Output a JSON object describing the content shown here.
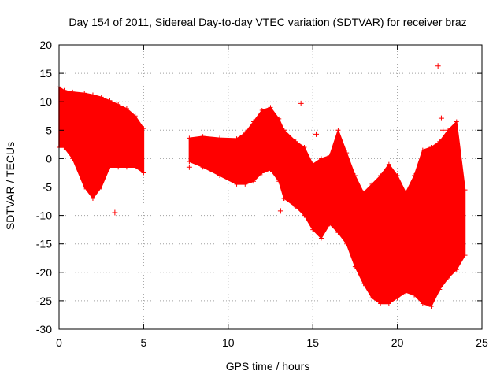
{
  "chart_data": {
    "type": "scatter",
    "title": "Day 154 of 2011, Sidereal Day-to-day VTEC variation (SDTVAR) for receiver braz",
    "xlabel": "GPS time / hours",
    "ylabel": "SDTVAR / TECUs",
    "xlim": [
      0,
      25
    ],
    "ylim": [
      -30,
      20
    ],
    "x_ticks": [
      0,
      5,
      10,
      15,
      20,
      25
    ],
    "y_ticks": [
      -30,
      -25,
      -20,
      -15,
      -10,
      -5,
      0,
      5,
      10,
      15,
      20
    ],
    "grid": true,
    "marker": "+",
    "color": "#ff0000",
    "envelopes": [
      {
        "name": "segment-1",
        "x": [
          0.0,
          0.3,
          0.8,
          1.5,
          2.0,
          2.5,
          3.0,
          3.5,
          4.0,
          4.5,
          5.0
        ],
        "upper": [
          12.6,
          12.0,
          11.7,
          11.5,
          11.2,
          10.8,
          10.2,
          9.5,
          8.8,
          7.5,
          5.3
        ],
        "lower": [
          2.0,
          2.0,
          0.0,
          -5.0,
          -7.0,
          -5.0,
          -1.5,
          -1.5,
          -1.5,
          -1.5,
          -2.5
        ]
      },
      {
        "name": "segment-2",
        "x": [
          7.7,
          8.5,
          9.5,
          10.5,
          11.0,
          11.5,
          12.0,
          12.5,
          13.0,
          13.3
        ],
        "upper": [
          3.6,
          3.9,
          3.6,
          3.5,
          4.5,
          6.5,
          8.5,
          9.0,
          7.0,
          5.0
        ],
        "lower": [
          -0.5,
          -1.5,
          -3.0,
          -4.5,
          -4.5,
          -4.0,
          -2.5,
          -2.0,
          -4.0,
          -7.0
        ]
      },
      {
        "name": "segment-3",
        "x": [
          13.3,
          14.0,
          14.5,
          15.0,
          15.5,
          16.0,
          16.5,
          17.0,
          17.5,
          18.0,
          18.5,
          19.0,
          19.5,
          20.0,
          20.5,
          21.0,
          21.5,
          22.0,
          22.5,
          23.0,
          23.5,
          24.0
        ],
        "upper": [
          5.0,
          3.0,
          2.0,
          -1.0,
          0.0,
          0.5,
          5.0,
          1.0,
          -3.0,
          -6.0,
          -4.5,
          -3.0,
          -1.0,
          -3.0,
          -6.0,
          -3.0,
          1.5,
          2.0,
          3.0,
          5.0,
          6.5,
          -5.5
        ],
        "lower": [
          -7.0,
          -8.5,
          -10.0,
          -12.5,
          -14.0,
          -11.5,
          -13.0,
          -15.0,
          -19.0,
          -22.0,
          -24.5,
          -25.5,
          -25.5,
          -24.5,
          -23.5,
          -24.0,
          -25.5,
          -26.0,
          -23.0,
          -21.0,
          -19.5,
          -17.0
        ]
      }
    ],
    "outliers": [
      {
        "x": 22.4,
        "y": 16.3
      },
      {
        "x": 14.3,
        "y": 9.7
      },
      {
        "x": 15.2,
        "y": 4.3
      },
      {
        "x": 22.6,
        "y": 7.1
      },
      {
        "x": 3.3,
        "y": -9.5
      },
      {
        "x": 13.1,
        "y": -9.2
      },
      {
        "x": 23.9,
        "y": -4.3
      },
      {
        "x": 7.7,
        "y": -1.5
      },
      {
        "x": 22.7,
        "y": 5.0
      },
      {
        "x": 14.2,
        "y": -2.0
      }
    ]
  }
}
